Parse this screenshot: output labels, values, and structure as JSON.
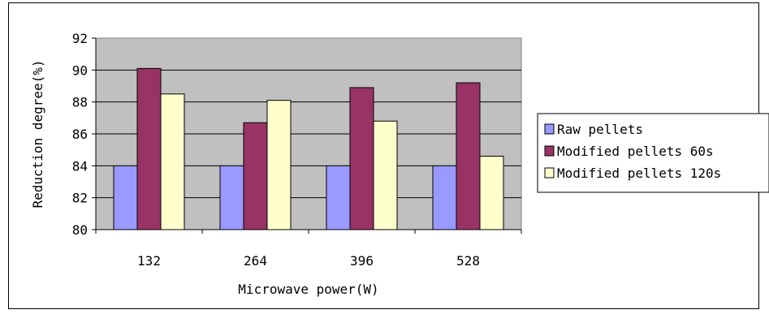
{
  "chart_data": {
    "type": "bar",
    "categories": [
      "132",
      "264",
      "396",
      "528"
    ],
    "series": [
      {
        "name": "Raw pellets",
        "values": [
          84.0,
          84.0,
          84.0,
          84.0
        ],
        "color": "#9999ff"
      },
      {
        "name": "Modified pellets 60s",
        "values": [
          90.1,
          86.7,
          88.9,
          89.2
        ],
        "color": "#993366"
      },
      {
        "name": "Modified pellets 120s",
        "values": [
          88.5,
          88.1,
          86.8,
          84.6
        ],
        "color": "#ffffcc"
      }
    ],
    "xlabel": "Microwave power(W)",
    "ylabel": "Reduction degree(%)",
    "ylim": [
      80,
      92
    ],
    "yticks": [
      80,
      82,
      84,
      86,
      88,
      90,
      92
    ],
    "grid": true,
    "plot_background": "#c0c0c0",
    "legend_position": "right"
  }
}
